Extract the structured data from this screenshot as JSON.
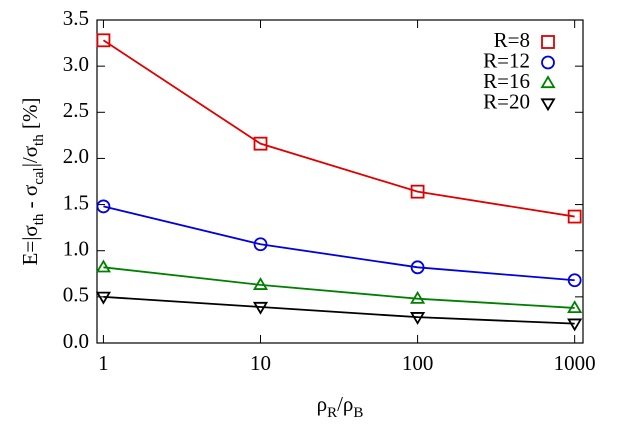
{
  "chart_data": {
    "type": "line",
    "x_label": [
      {
        "text": "ρ"
      },
      {
        "text": "R",
        "sub": true
      },
      {
        "text": "/ρ"
      },
      {
        "text": "B",
        "sub": true
      }
    ],
    "y_label": [
      {
        "text": "E=|σ"
      },
      {
        "text": "th",
        "sub": true
      },
      {
        "text": " - σ"
      },
      {
        "text": "cal",
        "sub": true
      },
      {
        "text": "|/σ"
      },
      {
        "text": "th",
        "sub": true
      },
      {
        "text": " [%]"
      }
    ],
    "x": [
      1,
      10,
      100,
      1000
    ],
    "x_log": true,
    "xlim": [
      0.91,
      1130
    ],
    "xticks": [
      1,
      10,
      100,
      1000
    ],
    "ylim": [
      0,
      3.5
    ],
    "yticks": [
      {
        "value": 0,
        "label": "0.0"
      },
      0.5,
      {
        "value": 1,
        "label": "1.0"
      },
      1.5,
      {
        "value": 2,
        "label": "2.0"
      },
      2.5,
      {
        "value": 3,
        "label": "3.0"
      },
      3.5
    ],
    "legend": "top-right",
    "series": [
      {
        "name": "R=8",
        "color": "#e00000",
        "marker": "square",
        "values": [
          3.28,
          2.16,
          1.64,
          1.37
        ]
      },
      {
        "name": "R=12",
        "color": "#0000e0",
        "marker": "circle",
        "values": [
          1.48,
          1.07,
          0.82,
          0.68
        ]
      },
      {
        "name": "R=16",
        "color": "#008000",
        "marker": "triangle-up",
        "values": [
          0.82,
          0.63,
          0.48,
          0.38
        ]
      },
      {
        "name": "R=20",
        "color": "#000000",
        "marker": "triangle-down",
        "values": [
          0.5,
          0.39,
          0.28,
          0.21
        ]
      }
    ]
  }
}
